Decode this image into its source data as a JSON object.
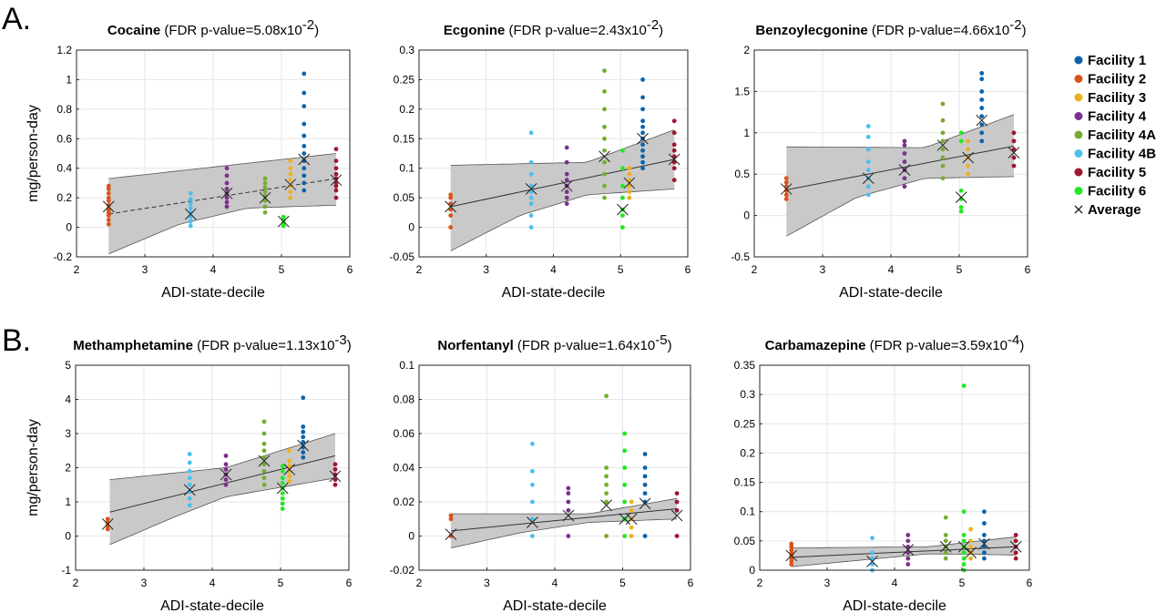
{
  "figure": {
    "panel_a_label": "A.",
    "panel_b_label": "B.",
    "y_axis_label": "mg/person-day",
    "x_axis_label": "ADI-state-decile"
  },
  "legend": {
    "items": [
      {
        "label": "Facility 1",
        "color": "#0a64ad"
      },
      {
        "label": "Facility 2",
        "color": "#d95319"
      },
      {
        "label": "Facility 3",
        "color": "#edb120"
      },
      {
        "label": "Facility 4",
        "color": "#7e2f8e"
      },
      {
        "label": "Facility 4A",
        "color": "#77ac30"
      },
      {
        "label": "Facility 4B",
        "color": "#4dbeee"
      },
      {
        "label": "Facility 5",
        "color": "#a2142f"
      },
      {
        "label": "Facility 6",
        "color": "#22e822"
      }
    ],
    "average_label": "Average",
    "average_marker": "×"
  },
  "chart_data": [
    {
      "type": "scatter",
      "title": "Cocaine",
      "p_prefix": "(FDR p-value=",
      "p_mant": "5.08x10",
      "p_exp": "-2",
      "p_suffix": ")",
      "xlabel": "ADI-state-decile",
      "ylabel": "mg/person-day",
      "xlim": [
        2,
        6
      ],
      "ylim": [
        -0.2,
        1.2
      ],
      "xticks": [
        "2",
        "3",
        "4",
        "5",
        "6"
      ],
      "yticks": [
        "-0.2",
        "0",
        "0.2",
        "0.4",
        "0.6",
        "0.8",
        "1",
        "1.2"
      ],
      "fit_style": "dashed",
      "fit_line": [
        [
          2.47,
          0.09
        ],
        [
          5.8,
          0.33
        ]
      ],
      "ci_upper": [
        [
          2.47,
          0.33
        ],
        [
          5.8,
          0.5
        ]
      ],
      "ci_lower": [
        [
          2.47,
          -0.18
        ],
        [
          3.5,
          0.02
        ],
        [
          4.5,
          0.13
        ],
        [
          5.8,
          0.15
        ]
      ],
      "series": [
        {
          "name": "Facility 1",
          "x": 5.33,
          "values": [
            0.25,
            0.3,
            0.35,
            0.4,
            0.45,
            0.5,
            0.55,
            0.62,
            0.7,
            0.82,
            0.91,
            1.04
          ],
          "avg": 0.46
        },
        {
          "name": "Facility 2",
          "x": 2.47,
          "values": [
            0.02,
            0.05,
            0.08,
            0.1,
            0.12,
            0.15,
            0.18,
            0.2,
            0.23,
            0.26,
            0.28
          ],
          "avg": 0.14
        },
        {
          "name": "Facility 3",
          "x": 5.13,
          "values": [
            0.2,
            0.24,
            0.28,
            0.32,
            0.36,
            0.4,
            0.45
          ],
          "avg": 0.29
        },
        {
          "name": "Facility 4",
          "x": 4.2,
          "values": [
            0.14,
            0.17,
            0.2,
            0.23,
            0.26,
            0.3,
            0.35,
            0.4
          ],
          "avg": 0.23
        },
        {
          "name": "Facility 4A",
          "x": 4.76,
          "values": [
            0.1,
            0.14,
            0.18,
            0.21,
            0.24,
            0.27,
            0.3,
            0.33
          ],
          "avg": 0.2
        },
        {
          "name": "Facility 4B",
          "x": 3.67,
          "values": [
            0.01,
            0.04,
            0.07,
            0.1,
            0.13,
            0.16,
            0.19,
            0.23
          ],
          "avg": 0.09
        },
        {
          "name": "Facility 5",
          "x": 5.8,
          "values": [
            0.2,
            0.25,
            0.28,
            0.3,
            0.33,
            0.36,
            0.4,
            0.45,
            0.53
          ],
          "avg": 0.32
        },
        {
          "name": "Facility 6",
          "x": 5.03,
          "values": [
            0.01,
            0.03,
            0.05,
            0.07
          ],
          "avg": 0.04
        }
      ]
    },
    {
      "type": "scatter",
      "title": "Ecgonine",
      "p_prefix": "(FDR p-value=",
      "p_mant": "2.43x10",
      "p_exp": "-2",
      "p_suffix": ")",
      "xlabel": "ADI-state-decile",
      "ylabel": "",
      "xlim": [
        2,
        6
      ],
      "ylim": [
        -0.05,
        0.3
      ],
      "xticks": [
        "2",
        "3",
        "4",
        "5",
        "6"
      ],
      "yticks": [
        "-0.05",
        "0",
        "0.05",
        "0.1",
        "0.15",
        "0.2",
        "0.25",
        "0.3"
      ],
      "fit_style": "solid",
      "fit_line": [
        [
          2.47,
          0.035
        ],
        [
          5.8,
          0.115
        ]
      ],
      "ci_upper": [
        [
          2.47,
          0.105
        ],
        [
          4.5,
          0.11
        ],
        [
          5.8,
          0.165
        ]
      ],
      "ci_lower": [
        [
          2.47,
          -0.04
        ],
        [
          3.5,
          0.02
        ],
        [
          4.5,
          0.055
        ],
        [
          5.8,
          0.065
        ]
      ],
      "series": [
        {
          "name": "Facility 1",
          "x": 5.33,
          "values": [
            0.1,
            0.11,
            0.12,
            0.13,
            0.14,
            0.15,
            0.16,
            0.17,
            0.18,
            0.2,
            0.22,
            0.25
          ],
          "avg": 0.15
        },
        {
          "name": "Facility 2",
          "x": 2.47,
          "values": [
            0.0,
            0.02,
            0.03,
            0.04,
            0.05,
            0.055
          ],
          "avg": 0.035
        },
        {
          "name": "Facility 3",
          "x": 5.13,
          "values": [
            0.05,
            0.06,
            0.07,
            0.08,
            0.09,
            0.1
          ],
          "avg": 0.075
        },
        {
          "name": "Facility 4",
          "x": 4.2,
          "values": [
            0.04,
            0.05,
            0.06,
            0.07,
            0.08,
            0.09,
            0.11,
            0.135
          ],
          "avg": 0.07
        },
        {
          "name": "Facility 4A",
          "x": 4.76,
          "values": [
            0.05,
            0.07,
            0.09,
            0.11,
            0.13,
            0.15,
            0.17,
            0.2,
            0.23,
            0.265
          ],
          "avg": 0.12
        },
        {
          "name": "Facility 4B",
          "x": 3.67,
          "values": [
            0.0,
            0.02,
            0.04,
            0.05,
            0.06,
            0.07,
            0.09,
            0.11,
            0.16
          ],
          "avg": 0.065
        },
        {
          "name": "Facility 5",
          "x": 5.8,
          "values": [
            0.08,
            0.1,
            0.11,
            0.12,
            0.13,
            0.14,
            0.16,
            0.18
          ],
          "avg": 0.115
        },
        {
          "name": "Facility 6",
          "x": 5.03,
          "values": [
            0.0,
            0.02,
            0.03,
            0.05,
            0.07,
            0.1,
            0.13
          ],
          "avg": 0.03
        }
      ]
    },
    {
      "type": "scatter",
      "title": "Benzoylecgonine",
      "p_prefix": "(FDR p-value=",
      "p_mant": "4.66x10",
      "p_exp": "-2",
      "p_suffix": ")",
      "xlabel": "ADI-state-decile",
      "ylabel": "",
      "xlim": [
        2,
        6
      ],
      "ylim": [
        -0.5,
        2
      ],
      "xticks": [
        "2",
        "3",
        "4",
        "5",
        "6"
      ],
      "yticks": [
        "-0.5",
        "0",
        "0.5",
        "1",
        "1.5",
        "2"
      ],
      "fit_style": "solid",
      "fit_line": [
        [
          2.47,
          0.31
        ],
        [
          5.8,
          0.84
        ]
      ],
      "ci_upper": [
        [
          2.47,
          0.83
        ],
        [
          4.5,
          0.82
        ],
        [
          5.8,
          1.22
        ]
      ],
      "ci_lower": [
        [
          2.47,
          -0.25
        ],
        [
          3.5,
          0.22
        ],
        [
          4.5,
          0.45
        ],
        [
          5.8,
          0.47
        ]
      ],
      "series": [
        {
          "name": "Facility 1",
          "x": 5.33,
          "values": [
            0.9,
            1.0,
            1.1,
            1.2,
            1.3,
            1.4,
            1.5,
            1.65,
            1.72
          ],
          "avg": 1.15
        },
        {
          "name": "Facility 2",
          "x": 2.47,
          "values": [
            0.2,
            0.25,
            0.3,
            0.35,
            0.4,
            0.45
          ],
          "avg": 0.32
        },
        {
          "name": "Facility 3",
          "x": 5.13,
          "values": [
            0.5,
            0.6,
            0.7,
            0.8,
            0.9
          ],
          "avg": 0.7
        },
        {
          "name": "Facility 4",
          "x": 4.2,
          "values": [
            0.35,
            0.45,
            0.55,
            0.65,
            0.75,
            0.85,
            0.9
          ],
          "avg": 0.55
        },
        {
          "name": "Facility 4A",
          "x": 4.76,
          "values": [
            0.45,
            0.6,
            0.7,
            0.8,
            0.9,
            1.0,
            1.15,
            1.35
          ],
          "avg": 0.85
        },
        {
          "name": "Facility 4B",
          "x": 3.67,
          "values": [
            0.25,
            0.35,
            0.45,
            0.55,
            0.65,
            0.8,
            0.95,
            1.08
          ],
          "avg": 0.45
        },
        {
          "name": "Facility 5",
          "x": 5.8,
          "values": [
            0.6,
            0.7,
            0.8,
            0.9,
            1.0
          ],
          "avg": 0.76
        },
        {
          "name": "Facility 6",
          "x": 5.03,
          "values": [
            0.05,
            0.1,
            0.2,
            0.3,
            0.9,
            1.0
          ],
          "avg": 0.22
        }
      ]
    },
    {
      "type": "scatter",
      "title": "Methamphetamine",
      "p_prefix": "(FDR p-value=",
      "p_mant": "1.13x10",
      "p_exp": "-3",
      "p_suffix": ")",
      "xlabel": "ADI-state-decile",
      "ylabel": "mg/person-day",
      "xlim": [
        2,
        6
      ],
      "ylim": [
        -1,
        5
      ],
      "xticks": [
        "2",
        "3",
        "4",
        "5",
        "6"
      ],
      "yticks": [
        "-1",
        "0",
        "1",
        "2",
        "3",
        "4",
        "5"
      ],
      "fit_style": "solid",
      "fit_line": [
        [
          2.5,
          0.7
        ],
        [
          5.8,
          2.35
        ]
      ],
      "ci_upper": [
        [
          2.5,
          1.65
        ],
        [
          4.2,
          2.0
        ],
        [
          5.8,
          3.0
        ]
      ],
      "ci_lower": [
        [
          2.5,
          -0.25
        ],
        [
          3.5,
          0.6
        ],
        [
          4.2,
          1.15
        ],
        [
          5.8,
          1.7
        ]
      ],
      "series": [
        {
          "name": "Facility 1",
          "x": 5.33,
          "values": [
            2.3,
            2.45,
            2.6,
            2.75,
            2.9,
            3.05,
            3.2,
            4.05
          ],
          "avg": 2.65
        },
        {
          "name": "Facility 2",
          "x": 2.47,
          "values": [
            0.2,
            0.3,
            0.4,
            0.5
          ],
          "avg": 0.35
        },
        {
          "name": "Facility 3",
          "x": 5.13,
          "values": [
            1.6,
            1.75,
            1.9,
            2.05,
            2.2,
            2.5
          ],
          "avg": 1.95
        },
        {
          "name": "Facility 4",
          "x": 4.2,
          "values": [
            1.5,
            1.65,
            1.8,
            1.95,
            2.1,
            2.35
          ],
          "avg": 1.8
        },
        {
          "name": "Facility 4A",
          "x": 4.76,
          "values": [
            1.5,
            1.7,
            1.9,
            2.1,
            2.3,
            2.5,
            2.7,
            3.0,
            3.35
          ],
          "avg": 2.2
        },
        {
          "name": "Facility 4B",
          "x": 3.67,
          "values": [
            0.9,
            1.1,
            1.3,
            1.5,
            1.7,
            1.9,
            2.15,
            2.4
          ],
          "avg": 1.35
        },
        {
          "name": "Facility 5",
          "x": 5.8,
          "values": [
            1.5,
            1.65,
            1.8,
            1.95,
            2.1
          ],
          "avg": 1.75
        },
        {
          "name": "Facility 6",
          "x": 5.03,
          "values": [
            0.8,
            0.95,
            1.1,
            1.25,
            1.4,
            1.55,
            1.7,
            1.9,
            2.05
          ],
          "avg": 1.4
        }
      ]
    },
    {
      "type": "scatter",
      "title": "Norfentanyl",
      "p_prefix": "(FDR p-value=",
      "p_mant": "1.64x10",
      "p_exp": "-5",
      "p_suffix": ")",
      "xlabel": "ADI-state-decile",
      "ylabel": "",
      "xlim": [
        2,
        6
      ],
      "ylim": [
        -0.02,
        0.1
      ],
      "xticks": [
        "2",
        "3",
        "4",
        "5",
        "6"
      ],
      "yticks": [
        "-0.02",
        "0",
        "0.02",
        "0.04",
        "0.06",
        "0.08",
        "0.1"
      ],
      "fit_style": "solid",
      "fit_line": [
        [
          2.47,
          0.003
        ],
        [
          5.8,
          0.016
        ]
      ],
      "ci_upper": [
        [
          2.47,
          0.013
        ],
        [
          4.5,
          0.013
        ],
        [
          5.8,
          0.022
        ]
      ],
      "ci_lower": [
        [
          2.47,
          -0.007
        ],
        [
          3.5,
          0.002
        ],
        [
          4.5,
          0.008
        ],
        [
          5.8,
          0.01
        ]
      ],
      "series": [
        {
          "name": "Facility 1",
          "x": 5.33,
          "values": [
            0.0,
            0.02,
            0.025,
            0.03,
            0.035,
            0.04,
            0.048
          ],
          "avg": 0.019
        },
        {
          "name": "Facility 2",
          "x": 2.47,
          "values": [
            0.0,
            0.01,
            0.012
          ],
          "avg": 0.001
        },
        {
          "name": "Facility 3",
          "x": 5.13,
          "values": [
            0.0,
            0.005,
            0.01,
            0.015,
            0.02
          ],
          "avg": 0.01
        },
        {
          "name": "Facility 4",
          "x": 4.2,
          "values": [
            0.0,
            0.015,
            0.02,
            0.025,
            0.028
          ],
          "avg": 0.012
        },
        {
          "name": "Facility 4A",
          "x": 4.76,
          "values": [
            0.0,
            0.02,
            0.025,
            0.03,
            0.035,
            0.04,
            0.082
          ],
          "avg": 0.018
        },
        {
          "name": "Facility 4B",
          "x": 3.67,
          "values": [
            0.0,
            0.01,
            0.02,
            0.03,
            0.038,
            0.054
          ],
          "avg": 0.008
        },
        {
          "name": "Facility 5",
          "x": 5.8,
          "values": [
            0.0,
            0.015,
            0.02,
            0.025
          ],
          "avg": 0.012
        },
        {
          "name": "Facility 6",
          "x": 5.03,
          "values": [
            0.0,
            0.01,
            0.02,
            0.03,
            0.04,
            0.05,
            0.06
          ],
          "avg": 0.01
        }
      ]
    },
    {
      "type": "scatter",
      "title": "Carbamazepine",
      "p_prefix": "(FDR p-value=",
      "p_mant": "3.59x10",
      "p_exp": "-4",
      "p_suffix": ")",
      "xlabel": "ADI-state-decile",
      "ylabel": "",
      "xlim": [
        2,
        6
      ],
      "ylim": [
        0,
        0.35
      ],
      "xticks": [
        "2",
        "3",
        "4",
        "5",
        "6"
      ],
      "yticks": [
        "0",
        "0.05",
        "0.1",
        "0.15",
        "0.2",
        "0.25",
        "0.3",
        "0.35"
      ],
      "fit_style": "solid",
      "fit_line": [
        [
          2.47,
          0.022
        ],
        [
          5.8,
          0.04
        ]
      ],
      "ci_upper": [
        [
          2.47,
          0.038
        ],
        [
          4.5,
          0.04
        ],
        [
          5.8,
          0.057
        ]
      ],
      "ci_lower": [
        [
          2.47,
          0.006
        ],
        [
          4.5,
          0.028
        ],
        [
          5.8,
          0.026
        ]
      ],
      "series": [
        {
          "name": "Facility 1",
          "x": 5.33,
          "values": [
            0.02,
            0.03,
            0.04,
            0.05,
            0.06,
            0.08,
            0.1
          ],
          "avg": 0.045
        },
        {
          "name": "Facility 2",
          "x": 2.47,
          "values": [
            0.01,
            0.015,
            0.02,
            0.025,
            0.03,
            0.035,
            0.04,
            0.045
          ],
          "avg": 0.025
        },
        {
          "name": "Facility 3",
          "x": 5.13,
          "values": [
            0.02,
            0.03,
            0.04,
            0.05,
            0.07
          ],
          "avg": 0.03
        },
        {
          "name": "Facility 4",
          "x": 4.2,
          "values": [
            0.01,
            0.02,
            0.03,
            0.04,
            0.05,
            0.06
          ],
          "avg": 0.035
        },
        {
          "name": "Facility 4A",
          "x": 4.76,
          "values": [
            0.02,
            0.03,
            0.04,
            0.05,
            0.06,
            0.09
          ],
          "avg": 0.04
        },
        {
          "name": "Facility 4B",
          "x": 3.67,
          "values": [
            0.0,
            0.01,
            0.02,
            0.03,
            0.055
          ],
          "avg": 0.015
        },
        {
          "name": "Facility 5",
          "x": 5.8,
          "values": [
            0.02,
            0.03,
            0.04,
            0.05,
            0.06
          ],
          "avg": 0.04
        },
        {
          "name": "Facility 6",
          "x": 5.03,
          "values": [
            0.0,
            0.01,
            0.02,
            0.03,
            0.04,
            0.05,
            0.06,
            0.1,
            0.315
          ],
          "avg": 0.04
        }
      ]
    }
  ]
}
